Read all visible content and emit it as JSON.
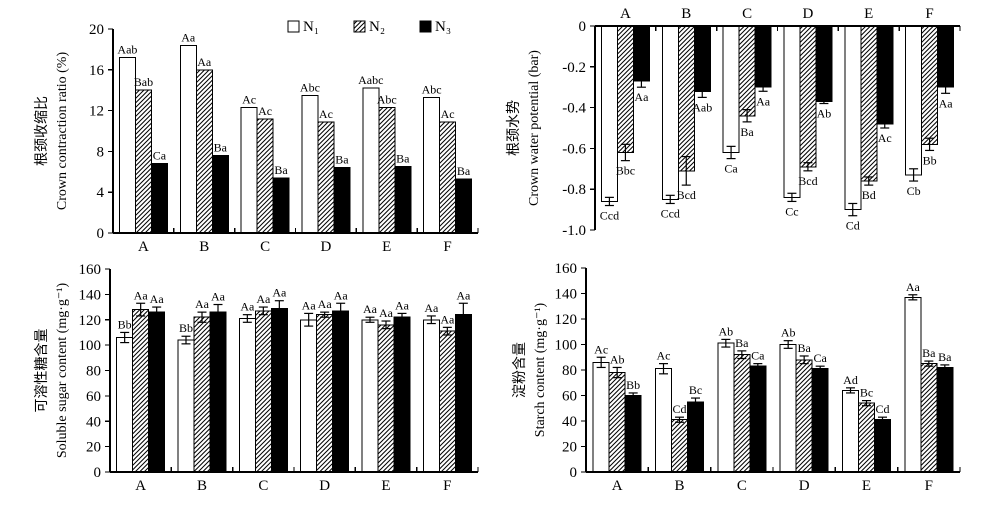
{
  "figure": {
    "description": "Four-panel grouped bar figure comparing N1/N2/N3 treatments across sites A-F",
    "legend": {
      "items": [
        {
          "label": "N₁",
          "style": "white"
        },
        {
          "label": "N₂",
          "style": "hatch"
        },
        {
          "label": "N₃",
          "style": "black"
        }
      ]
    },
    "colors": {
      "bar_white": "#ffffff",
      "bar_black": "#000000",
      "stroke": "#000000",
      "background": "#ffffff"
    }
  },
  "chart_data": [
    {
      "id": "crown-contraction-ratio",
      "type": "bar",
      "title": "",
      "ylabel_zh": "根颈收缩比",
      "ylabel_en": "Crown contraction ratio (%)",
      "categories": [
        "A",
        "B",
        "C",
        "D",
        "E",
        "F"
      ],
      "ylim": [
        0,
        20
      ],
      "yticks": [
        {
          "v": 20,
          "label": "20"
        },
        {
          "v": 16,
          "label": "16"
        },
        {
          "v": 12,
          "label": "12"
        },
        {
          "v": 8,
          "label": "8"
        },
        {
          "v": 4,
          "label": "4"
        },
        {
          "v": 0,
          "label": "0"
        }
      ],
      "legend_position": "top-right-inside",
      "grid": false,
      "series": [
        {
          "name": "N₁",
          "style": "white",
          "values": [
            17.2,
            18.4,
            12.3,
            13.5,
            14.2,
            13.3
          ],
          "sig_labels": [
            "Aab",
            "Aa",
            "Ac",
            "Abc",
            "Aabc",
            "Abc"
          ]
        },
        {
          "name": "N₂",
          "style": "hatch",
          "values": [
            14.0,
            16.0,
            11.2,
            10.9,
            12.3,
            10.9
          ],
          "sig_labels": [
            "Bab",
            "Aa",
            "Ac",
            "Ac",
            "Abc",
            "Ac"
          ]
        },
        {
          "name": "N₃",
          "style": "black",
          "values": [
            6.8,
            7.6,
            5.4,
            6.4,
            6.5,
            5.3
          ],
          "sig_labels": [
            "Ca",
            "Ba",
            "Ba",
            "Ba",
            "Ba",
            "Ba"
          ]
        }
      ]
    },
    {
      "id": "crown-water-potential",
      "type": "bar",
      "title": "",
      "ylabel_zh": "根颈水势",
      "ylabel_en": "Crown water potential (bar)",
      "categories": [
        "A",
        "B",
        "C",
        "D",
        "E",
        "F"
      ],
      "ylim": [
        -1.0,
        0
      ],
      "yticks": [
        {
          "v": 0,
          "label": "0"
        },
        {
          "v": -0.2,
          "label": "-0.2"
        },
        {
          "v": -0.4,
          "label": "-0.4"
        },
        {
          "v": -0.6,
          "label": "-0.6"
        },
        {
          "v": -0.8,
          "label": "-0.8"
        },
        {
          "v": -1.0,
          "label": "-1.0"
        }
      ],
      "legend_position": "none",
      "grid": false,
      "series": [
        {
          "name": "N₁",
          "style": "white",
          "values": [
            -0.86,
            -0.85,
            -0.62,
            -0.84,
            -0.9,
            -0.73
          ],
          "errors": [
            0.02,
            0.02,
            0.03,
            0.02,
            0.03,
            0.03
          ],
          "sig_labels": [
            "Ccd",
            "Ccd",
            "Ca",
            "Cc",
            "Cd",
            "Cb"
          ]
        },
        {
          "name": "N₂",
          "style": "hatch",
          "values": [
            -0.62,
            -0.71,
            -0.44,
            -0.69,
            -0.76,
            -0.58
          ],
          "errors": [
            0.04,
            0.07,
            0.03,
            0.02,
            0.02,
            0.03
          ],
          "sig_labels": [
            "Bbc",
            "Bcd",
            "Ba",
            "Bcd",
            "Bd",
            "Bb"
          ]
        },
        {
          "name": "N₃",
          "style": "black",
          "values": [
            -0.27,
            -0.32,
            -0.3,
            -0.37,
            -0.48,
            -0.3
          ],
          "errors": [
            0.03,
            0.03,
            0.02,
            0.01,
            0.02,
            0.03
          ],
          "sig_labels": [
            "Aa",
            "Aab",
            "Aa",
            "Ab",
            "Ac",
            "Aa"
          ]
        }
      ]
    },
    {
      "id": "soluble-sugar-content",
      "type": "bar",
      "title": "",
      "ylabel_zh": "可溶性糖含量",
      "ylabel_en": "Soluble sugar content (mg·g⁻¹)",
      "categories": [
        "A",
        "B",
        "C",
        "D",
        "E",
        "F"
      ],
      "ylim": [
        0,
        160
      ],
      "yticks": [
        {
          "v": 160,
          "label": "160"
        },
        {
          "v": 140,
          "label": "140"
        },
        {
          "v": 120,
          "label": "120"
        },
        {
          "v": 100,
          "label": "100"
        },
        {
          "v": 80,
          "label": "80"
        },
        {
          "v": 60,
          "label": "60"
        },
        {
          "v": 40,
          "label": "40"
        },
        {
          "v": 20,
          "label": "20"
        },
        {
          "v": 0,
          "label": "0"
        }
      ],
      "legend_position": "none",
      "grid": false,
      "series": [
        {
          "name": "N₁",
          "style": "white",
          "values": [
            106,
            104,
            121,
            120,
            120,
            120
          ],
          "errors": [
            4,
            3,
            3,
            5,
            2,
            3
          ],
          "sig_labels": [
            "Bb",
            "Bb",
            "Aa",
            "Aa",
            "Aa",
            "Aa"
          ]
        },
        {
          "name": "N₂",
          "style": "hatch",
          "values": [
            128,
            122,
            127,
            124,
            116,
            111
          ],
          "errors": [
            5,
            4,
            3,
            2,
            3,
            3
          ],
          "sig_labels": [
            "Aa",
            "Aa",
            "Aa",
            "Aa",
            "Aa",
            "Aa"
          ]
        },
        {
          "name": "N₃",
          "style": "black",
          "values": [
            126,
            126,
            129,
            127,
            122,
            124
          ],
          "errors": [
            4,
            6,
            6,
            6,
            3,
            9
          ],
          "sig_labels": [
            "Aa",
            "Aa",
            "Aa",
            "Aa",
            "Aa",
            "Aa"
          ]
        }
      ]
    },
    {
      "id": "starch-content",
      "type": "bar",
      "title": "",
      "ylabel_zh": "淀粉含量",
      "ylabel_en": "Starch content (mg·g⁻¹)",
      "categories": [
        "A",
        "B",
        "C",
        "D",
        "E",
        "F"
      ],
      "ylim": [
        0,
        160
      ],
      "yticks": [
        {
          "v": 160,
          "label": "160"
        },
        {
          "v": 140,
          "label": "140"
        },
        {
          "v": 120,
          "label": "120"
        },
        {
          "v": 100,
          "label": "100"
        },
        {
          "v": 80,
          "label": "80"
        },
        {
          "v": 60,
          "label": "60"
        },
        {
          "v": 40,
          "label": "40"
        },
        {
          "v": 20,
          "label": "20"
        },
        {
          "v": 0,
          "label": "0"
        }
      ],
      "legend_position": "none",
      "grid": false,
      "series": [
        {
          "name": "N₁",
          "style": "white",
          "values": [
            86,
            81,
            101,
            100,
            64,
            137
          ],
          "errors": [
            4,
            4,
            3,
            3,
            2,
            2
          ],
          "sig_labels": [
            "Ac",
            "Ac",
            "Ab",
            "Ab",
            "Ad",
            "Aa"
          ]
        },
        {
          "name": "N₂",
          "style": "hatch",
          "values": [
            78,
            41,
            92,
            88,
            54,
            85
          ],
          "errors": [
            4,
            2,
            3,
            3,
            2,
            2
          ],
          "sig_labels": [
            "Ab",
            "Cd",
            "Ba",
            "Ba",
            "Bc",
            "Ba"
          ]
        },
        {
          "name": "N₃",
          "style": "black",
          "values": [
            60,
            55,
            83,
            81,
            41,
            82
          ],
          "errors": [
            2,
            3,
            2,
            2,
            2,
            2
          ],
          "sig_labels": [
            "Bb",
            "Bc",
            "Ca",
            "Ca",
            "Cd",
            "Ba"
          ]
        }
      ]
    }
  ]
}
